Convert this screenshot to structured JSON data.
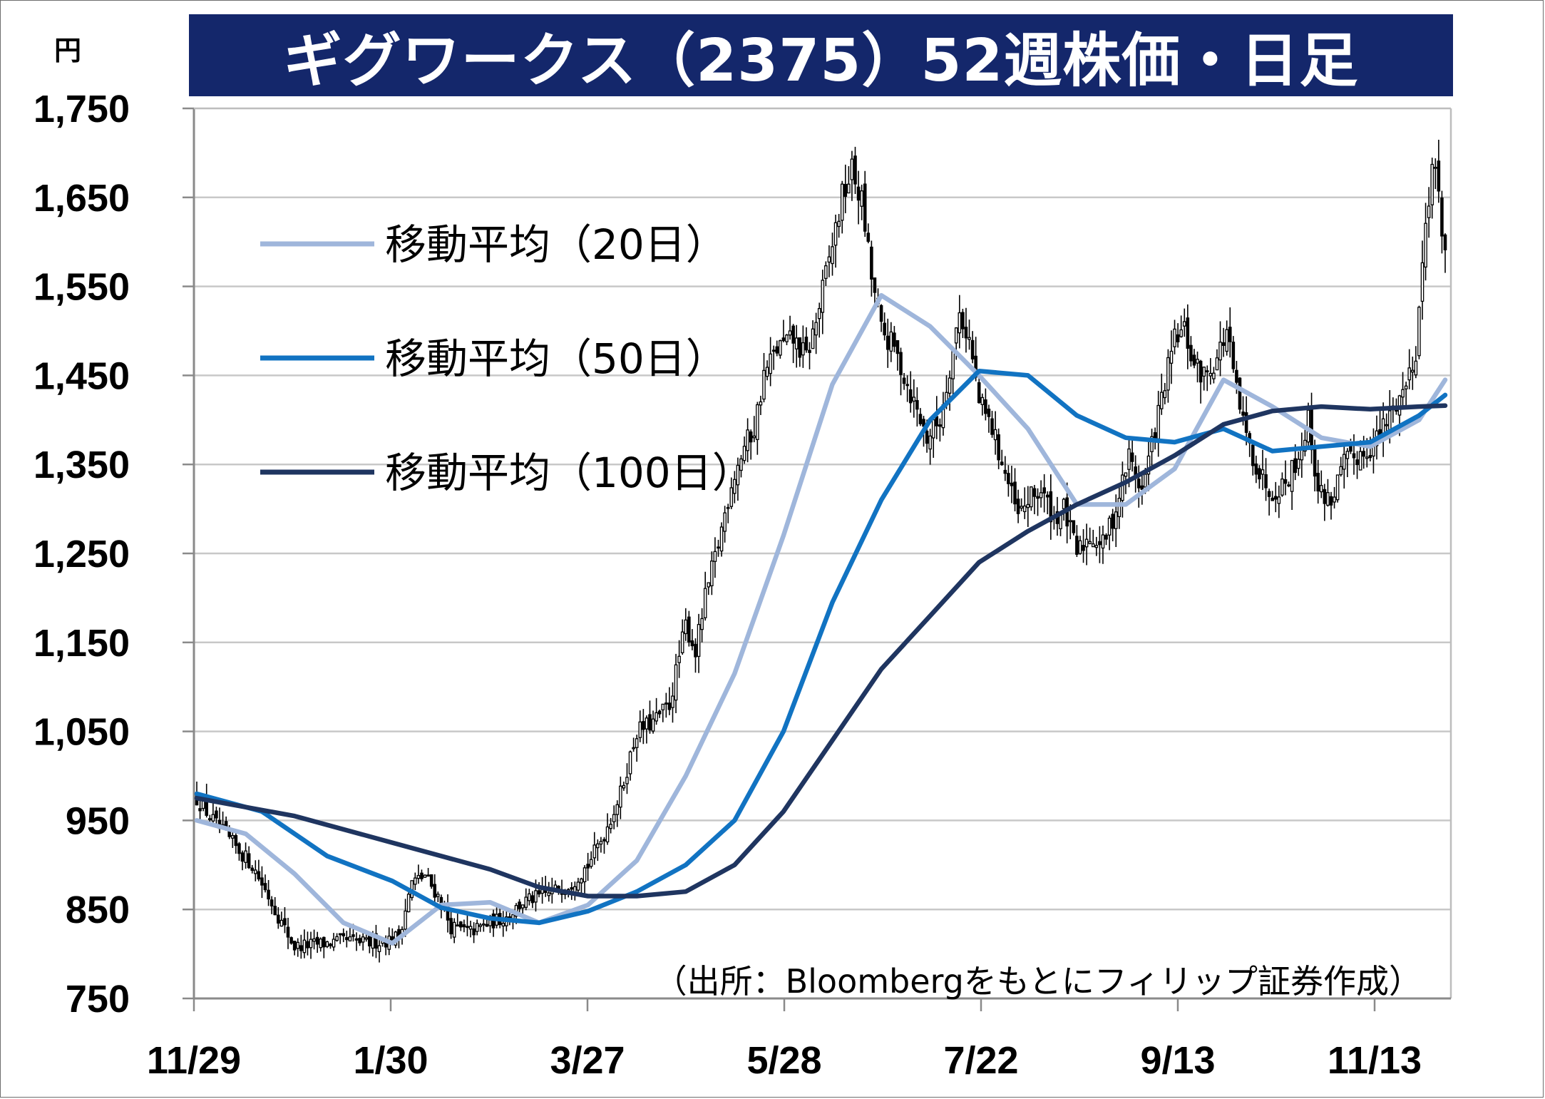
{
  "title": "ギグワークス（2375）52週株価・日足",
  "source": "（出所：Bloombergをもとにフィリップ証券作成）",
  "chart_data": {
    "type": "candlestick",
    "title": "ギグワークス（2375）52週株価・日足",
    "y_unit": "円",
    "ylim": [
      750,
      1750
    ],
    "y_ticks": [
      "1,750",
      "1,650",
      "1,550",
      "1,450",
      "1,350",
      "1,250",
      "1,150",
      "1,050",
      "950",
      "850",
      "750"
    ],
    "x_ticks": [
      "11/29",
      "1/30",
      "3/27",
      "5/28",
      "7/22",
      "9/13",
      "11/13"
    ],
    "grid": true,
    "legend_position": "top-left",
    "candle_colors": {
      "up": "#ffffff",
      "down": "#000000",
      "outline": "#000000"
    },
    "price_keypoints": [
      [
        0,
        975
      ],
      [
        6,
        945
      ],
      [
        12,
        920
      ],
      [
        17,
        900
      ],
      [
        22,
        865
      ],
      [
        26,
        835
      ],
      [
        30,
        808
      ],
      [
        34,
        810
      ],
      [
        40,
        812
      ],
      [
        46,
        815
      ],
      [
        52,
        812
      ],
      [
        58,
        815
      ],
      [
        62,
        820
      ],
      [
        66,
        880
      ],
      [
        70,
        888
      ],
      [
        74,
        865
      ],
      [
        78,
        830
      ],
      [
        84,
        825
      ],
      [
        90,
        835
      ],
      [
        95,
        842
      ],
      [
        100,
        858
      ],
      [
        108,
        868
      ],
      [
        115,
        880
      ],
      [
        120,
        900
      ],
      [
        125,
        935
      ],
      [
        130,
        980
      ],
      [
        135,
        1050
      ],
      [
        140,
        1060
      ],
      [
        145,
        1080
      ],
      [
        150,
        1170
      ],
      [
        153,
        1140
      ],
      [
        156,
        1200
      ],
      [
        160,
        1260
      ],
      [
        164,
        1330
      ],
      [
        168,
        1370
      ],
      [
        171,
        1390
      ],
      [
        174,
        1450
      ],
      [
        178,
        1480
      ],
      [
        183,
        1490
      ],
      [
        187,
        1470
      ],
      [
        190,
        1510
      ],
      [
        194,
        1580
      ],
      [
        198,
        1650
      ],
      [
        201,
        1680
      ],
      [
        204,
        1645
      ],
      [
        207,
        1560
      ],
      [
        210,
        1500
      ],
      [
        214,
        1480
      ],
      [
        218,
        1440
      ],
      [
        221,
        1410
      ],
      [
        224,
        1380
      ],
      [
        228,
        1400
      ],
      [
        231,
        1460
      ],
      [
        234,
        1520
      ],
      [
        237,
        1490
      ],
      [
        240,
        1420
      ],
      [
        244,
        1390
      ],
      [
        248,
        1340
      ],
      [
        252,
        1290
      ],
      [
        255,
        1310
      ],
      [
        259,
        1320
      ],
      [
        263,
        1290
      ],
      [
        266,
        1300
      ],
      [
        270,
        1250
      ],
      [
        274,
        1270
      ],
      [
        278,
        1260
      ],
      [
        282,
        1300
      ],
      [
        286,
        1360
      ],
      [
        290,
        1320
      ],
      [
        294,
        1390
      ],
      [
        297,
        1440
      ],
      [
        300,
        1490
      ],
      [
        303,
        1500
      ],
      [
        306,
        1460
      ],
      [
        309,
        1450
      ],
      [
        313,
        1470
      ],
      [
        316,
        1500
      ],
      [
        319,
        1430
      ],
      [
        322,
        1380
      ],
      [
        326,
        1340
      ],
      [
        330,
        1320
      ],
      [
        334,
        1330
      ],
      [
        338,
        1360
      ],
      [
        341,
        1400
      ],
      [
        344,
        1320
      ],
      [
        348,
        1310
      ],
      [
        352,
        1350
      ],
      [
        356,
        1360
      ],
      [
        360,
        1370
      ],
      [
        364,
        1390
      ],
      [
        368,
        1420
      ],
      [
        371,
        1440
      ],
      [
        374,
        1480
      ],
      [
        377,
        1620
      ],
      [
        379,
        1690
      ],
      [
        381,
        1650
      ],
      [
        383,
        1590
      ]
    ],
    "moving_averages": [
      {
        "name": "移動平均（20日）",
        "color": "#9fb6db",
        "points": [
          [
            0,
            950
          ],
          [
            15,
            935
          ],
          [
            30,
            890
          ],
          [
            45,
            835
          ],
          [
            60,
            812
          ],
          [
            75,
            855
          ],
          [
            90,
            858
          ],
          [
            105,
            835
          ],
          [
            120,
            855
          ],
          [
            135,
            905
          ],
          [
            150,
            1000
          ],
          [
            165,
            1115
          ],
          [
            180,
            1270
          ],
          [
            195,
            1440
          ],
          [
            210,
            1540
          ],
          [
            225,
            1505
          ],
          [
            240,
            1450
          ],
          [
            255,
            1390
          ],
          [
            270,
            1305
          ],
          [
            285,
            1305
          ],
          [
            300,
            1345
          ],
          [
            315,
            1445
          ],
          [
            330,
            1415
          ],
          [
            345,
            1380
          ],
          [
            360,
            1370
          ],
          [
            375,
            1400
          ],
          [
            383,
            1445
          ]
        ]
      },
      {
        "name": "移動平均（50日）",
        "color": "#1173c2",
        "points": [
          [
            0,
            980
          ],
          [
            20,
            960
          ],
          [
            40,
            910
          ],
          [
            60,
            882
          ],
          [
            75,
            852
          ],
          [
            90,
            840
          ],
          [
            105,
            835
          ],
          [
            120,
            848
          ],
          [
            135,
            870
          ],
          [
            150,
            900
          ],
          [
            165,
            950
          ],
          [
            180,
            1050
          ],
          [
            195,
            1195
          ],
          [
            210,
            1310
          ],
          [
            225,
            1400
          ],
          [
            240,
            1455
          ],
          [
            255,
            1450
          ],
          [
            270,
            1405
          ],
          [
            285,
            1380
          ],
          [
            300,
            1375
          ],
          [
            315,
            1390
          ],
          [
            330,
            1365
          ],
          [
            345,
            1370
          ],
          [
            360,
            1375
          ],
          [
            375,
            1405
          ],
          [
            383,
            1428
          ]
        ]
      },
      {
        "name": "移動平均（100日）",
        "color": "#1f3560",
        "points": [
          [
            0,
            975
          ],
          [
            30,
            955
          ],
          [
            60,
            925
          ],
          [
            90,
            895
          ],
          [
            105,
            875
          ],
          [
            120,
            865
          ],
          [
            135,
            865
          ],
          [
            150,
            870
          ],
          [
            165,
            900
          ],
          [
            180,
            960
          ],
          [
            195,
            1040
          ],
          [
            210,
            1120
          ],
          [
            225,
            1180
          ],
          [
            240,
            1240
          ],
          [
            255,
            1275
          ],
          [
            270,
            1305
          ],
          [
            285,
            1330
          ],
          [
            300,
            1360
          ],
          [
            315,
            1395
          ],
          [
            330,
            1410
          ],
          [
            345,
            1415
          ],
          [
            360,
            1412
          ],
          [
            375,
            1415
          ],
          [
            383,
            1416
          ]
        ]
      }
    ]
  }
}
